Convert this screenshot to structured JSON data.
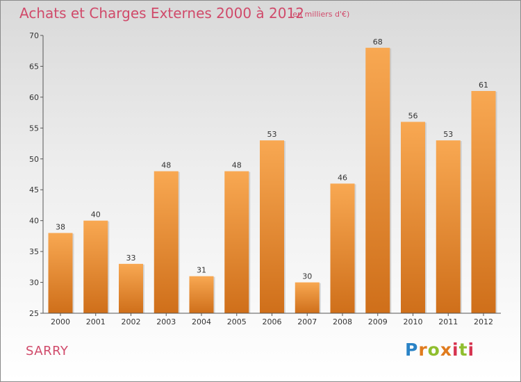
{
  "page": {
    "title": "Achats et Charges Externes 2000 à 2012",
    "subtitle": "(en milliers d'€)",
    "city": "SARRY",
    "logo": {
      "letters": [
        "P",
        "r",
        "o",
        "x",
        "i",
        "t",
        "i"
      ]
    }
  },
  "colors": {
    "title": "#d04a6a",
    "bar_light": "#f8a852",
    "bar_dark": "#cf6f1a",
    "axis": "#555555"
  },
  "chart_data": {
    "type": "bar",
    "title": "Achats et Charges Externes 2000 à 2012",
    "subtitle": "(en milliers d'€)",
    "categories": [
      "2000",
      "2001",
      "2002",
      "2003",
      "2004",
      "2005",
      "2006",
      "2007",
      "2008",
      "2009",
      "2010",
      "2011",
      "2012"
    ],
    "values": [
      38,
      40,
      33,
      48,
      31,
      48,
      53,
      30,
      46,
      68,
      56,
      53,
      61
    ],
    "ylim": [
      25,
      70
    ],
    "yticks": [
      25,
      30,
      35,
      40,
      45,
      50,
      55,
      60,
      65,
      70
    ],
    "grid": false,
    "legend": "none"
  }
}
